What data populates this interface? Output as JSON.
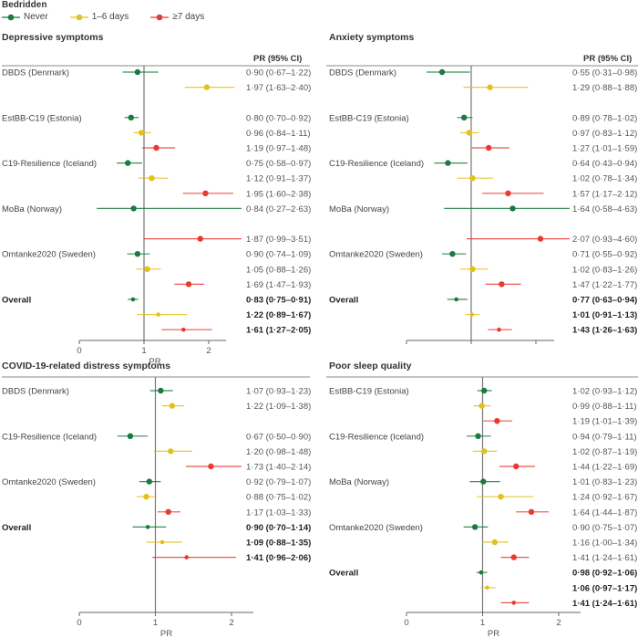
{
  "legend": {
    "title": "Bedridden",
    "items": [
      {
        "label": "Never",
        "color": "#1a7a3f"
      },
      {
        "label": "1–6 days",
        "color": "#e3c01c"
      },
      {
        "label": "≥7 days",
        "color": "#e83a30"
      }
    ]
  },
  "chart_data": [
    {
      "type": "forest",
      "title": "Depressive symptoms",
      "value_header": "PR (95% CI)",
      "xlabel": "PR",
      "xticks": [
        0,
        1,
        2
      ],
      "reference_line": 1,
      "rows": [
        {
          "study": "DBDS (Denmark)",
          "group": "Never",
          "pr": 0.9,
          "lo": 0.67,
          "hi": 1.22,
          "text": "0·90 (0·67–1·22)"
        },
        {
          "study": "",
          "group": "1–6 days",
          "pr": 1.97,
          "lo": 1.63,
          "hi": 2.4,
          "text": "1·97 (1·63–2·40)"
        },
        {
          "study": "",
          "group": "gap"
        },
        {
          "study": "EstBB-C19 (Estonia)",
          "group": "Never",
          "pr": 0.8,
          "lo": 0.7,
          "hi": 0.92,
          "text": "0·80 (0·70–0·92)"
        },
        {
          "study": "",
          "group": "1–6 days",
          "pr": 0.96,
          "lo": 0.84,
          "hi": 1.11,
          "text": "0·96 (0·84–1·11)"
        },
        {
          "study": "",
          "group": "≥7 days",
          "pr": 1.19,
          "lo": 0.97,
          "hi": 1.48,
          "text": "1·19 (0·97–1·48)"
        },
        {
          "study": "C19-Resilience (Iceland)",
          "group": "Never",
          "pr": 0.75,
          "lo": 0.58,
          "hi": 0.97,
          "text": "0·75 (0·58–0·97)"
        },
        {
          "study": "",
          "group": "1–6 days",
          "pr": 1.12,
          "lo": 0.91,
          "hi": 1.37,
          "text": "1·12 (0·91–1·37)"
        },
        {
          "study": "",
          "group": "≥7 days",
          "pr": 1.95,
          "lo": 1.6,
          "hi": 2.38,
          "text": "1·95 (1·60–2·38)"
        },
        {
          "study": "MoBa (Norway)",
          "group": "Never",
          "pr": 0.84,
          "lo": 0.27,
          "hi": 2.63,
          "text": "0·84 (0·27–2·63)"
        },
        {
          "study": "",
          "group": "gap"
        },
        {
          "study": "",
          "group": "≥7 days",
          "pr": 1.87,
          "lo": 0.99,
          "hi": 3.51,
          "text": "1·87 (0·99–3·51)"
        },
        {
          "study": "Omtanke2020 (Sweden)",
          "group": "Never",
          "pr": 0.9,
          "lo": 0.74,
          "hi": 1.09,
          "text": "0·90 (0·74–1·09)"
        },
        {
          "study": "",
          "group": "1–6 days",
          "pr": 1.05,
          "lo": 0.88,
          "hi": 1.26,
          "text": "1·05 (0·88–1·26)"
        },
        {
          "study": "",
          "group": "≥7 days",
          "pr": 1.69,
          "lo": 1.47,
          "hi": 1.93,
          "text": "1·69 (1·47–1·93)"
        },
        {
          "study": "Overall",
          "overall": true,
          "group": "Never",
          "pr": 0.83,
          "lo": 0.75,
          "hi": 0.91,
          "text": "0·83 (0·75–0·91)"
        },
        {
          "study": "",
          "overall": true,
          "group": "1–6 days",
          "pr": 1.22,
          "lo": 0.89,
          "hi": 1.67,
          "text": "1·22 (0·89–1·67)"
        },
        {
          "study": "",
          "overall": true,
          "group": "≥7 days",
          "pr": 1.61,
          "lo": 1.27,
          "hi": 2.05,
          "text": "1·61 (1·27–2·05)"
        }
      ]
    },
    {
      "type": "forest",
      "title": "Anxiety symptoms",
      "value_header": "PR (95% CI)",
      "xlabel": "",
      "xticks": [],
      "reference_line": 1,
      "rows": [
        {
          "study": "DBDS (Denmark)",
          "group": "Never",
          "pr": 0.55,
          "lo": 0.31,
          "hi": 0.98,
          "text": "0·55 (0·31–0·98)"
        },
        {
          "study": "",
          "group": "1–6 days",
          "pr": 1.29,
          "lo": 0.88,
          "hi": 1.88,
          "text": "1·29 (0·88–1·88)"
        },
        {
          "study": "",
          "group": "gap"
        },
        {
          "study": "EstBB-C19 (Estonia)",
          "group": "Never",
          "pr": 0.89,
          "lo": 0.78,
          "hi": 1.02,
          "text": "0·89 (0·78–1·02)"
        },
        {
          "study": "",
          "group": "1–6 days",
          "pr": 0.97,
          "lo": 0.83,
          "hi": 1.12,
          "text": "0·97 (0·83–1·12)"
        },
        {
          "study": "",
          "group": "≥7 days",
          "pr": 1.27,
          "lo": 1.01,
          "hi": 1.59,
          "text": "1·27 (1·01–1·59)"
        },
        {
          "study": "C19-Resilience (Iceland)",
          "group": "Never",
          "pr": 0.64,
          "lo": 0.43,
          "hi": 0.94,
          "text": "0·64 (0·43–0·94)"
        },
        {
          "study": "",
          "group": "1–6 days",
          "pr": 1.02,
          "lo": 0.78,
          "hi": 1.34,
          "text": "1·02 (0·78–1·34)"
        },
        {
          "study": "",
          "group": "≥7 days",
          "pr": 1.57,
          "lo": 1.17,
          "hi": 2.12,
          "text": "1·57 (1·17–2·12)"
        },
        {
          "study": "MoBa (Norway)",
          "group": "Never",
          "pr": 1.64,
          "lo": 0.58,
          "hi": 4.63,
          "text": "1·64 (0·58–4·63)"
        },
        {
          "study": "",
          "group": "gap"
        },
        {
          "study": "",
          "group": "≥7 days",
          "pr": 2.07,
          "lo": 0.93,
          "hi": 4.6,
          "text": "2·07 (0·93–4·60)"
        },
        {
          "study": "Omtanke2020 (Sweden)",
          "group": "Never",
          "pr": 0.71,
          "lo": 0.55,
          "hi": 0.92,
          "text": "0·71 (0·55–0·92)"
        },
        {
          "study": "",
          "group": "1–6 days",
          "pr": 1.02,
          "lo": 0.83,
          "hi": 1.26,
          "text": "1·02 (0·83–1·26)"
        },
        {
          "study": "",
          "group": "≥7 days",
          "pr": 1.47,
          "lo": 1.22,
          "hi": 1.77,
          "text": "1·47 (1·22–1·77)"
        },
        {
          "study": "Overall",
          "overall": true,
          "group": "Never",
          "pr": 0.77,
          "lo": 0.63,
          "hi": 0.94,
          "text": "0·77 (0·63–0·94)"
        },
        {
          "study": "",
          "overall": true,
          "group": "1–6 days",
          "pr": 1.01,
          "lo": 0.91,
          "hi": 1.13,
          "text": "1·01 (0·91–1·13)"
        },
        {
          "study": "",
          "overall": true,
          "group": "≥7 days",
          "pr": 1.43,
          "lo": 1.26,
          "hi": 1.63,
          "text": "1·43 (1·26–1·63)"
        }
      ]
    },
    {
      "type": "forest",
      "title": "COVID-19-related distress symptoms",
      "value_header": "",
      "xlabel": "PR",
      "xticks": [
        0,
        1,
        2
      ],
      "reference_line": 1,
      "rows": [
        {
          "study": "DBDS (Denmark)",
          "group": "Never",
          "pr": 1.07,
          "lo": 0.93,
          "hi": 1.23,
          "text": "1·07 (0·93–1·23)"
        },
        {
          "study": "",
          "group": "1–6 days",
          "pr": 1.22,
          "lo": 1.09,
          "hi": 1.38,
          "text": "1·22 (1·09–1·38)"
        },
        {
          "study": "",
          "group": "gap"
        },
        {
          "study": "C19-Resilience (Iceland)",
          "group": "Never",
          "pr": 0.67,
          "lo": 0.5,
          "hi": 0.9,
          "text": "0·67 (0·50–0·90)"
        },
        {
          "study": "",
          "group": "1–6 days",
          "pr": 1.2,
          "lo": 0.98,
          "hi": 1.48,
          "text": "1·20 (0·98–1·48)"
        },
        {
          "study": "",
          "group": "≥7 days",
          "pr": 1.73,
          "lo": 1.4,
          "hi": 2.14,
          "text": "1·73 (1·40–2·14)"
        },
        {
          "study": "Omtanke2020 (Sweden)",
          "group": "Never",
          "pr": 0.92,
          "lo": 0.79,
          "hi": 1.07,
          "text": "0·92 (0·79–1·07)"
        },
        {
          "study": "",
          "group": "1–6 days",
          "pr": 0.88,
          "lo": 0.75,
          "hi": 1.02,
          "text": "0·88 (0·75–1·02)"
        },
        {
          "study": "",
          "group": "≥7 days",
          "pr": 1.17,
          "lo": 1.03,
          "hi": 1.33,
          "text": "1·17 (1·03–1·33)"
        },
        {
          "study": "Overall",
          "overall": true,
          "group": "Never",
          "pr": 0.9,
          "lo": 0.7,
          "hi": 1.14,
          "text": "0·90 (0·70–1·14)"
        },
        {
          "study": "",
          "overall": true,
          "group": "1–6 days",
          "pr": 1.09,
          "lo": 0.88,
          "hi": 1.35,
          "text": "1·09 (0·88–1·35)"
        },
        {
          "study": "",
          "overall": true,
          "group": "≥7 days",
          "pr": 1.41,
          "lo": 0.96,
          "hi": 2.06,
          "text": "1·41 (0·96–2·06)"
        }
      ]
    },
    {
      "type": "forest",
      "title": "Poor sleep quality",
      "value_header": "",
      "xlabel": "PR",
      "xticks": [
        0,
        1,
        2
      ],
      "reference_line": 1,
      "rows": [
        {
          "study": "EstBB-C19 (Estonia)",
          "group": "Never",
          "pr": 1.02,
          "lo": 0.93,
          "hi": 1.12,
          "text": "1·02 (0·93–1·12)"
        },
        {
          "study": "",
          "group": "1–6 days",
          "pr": 0.99,
          "lo": 0.88,
          "hi": 1.11,
          "text": "0·99 (0·88–1·11)"
        },
        {
          "study": "",
          "group": "≥7 days",
          "pr": 1.19,
          "lo": 1.01,
          "hi": 1.39,
          "text": "1·19 (1·01–1·39)"
        },
        {
          "study": "C19-Resilience (Iceland)",
          "group": "Never",
          "pr": 0.94,
          "lo": 0.79,
          "hi": 1.11,
          "text": "0·94 (0·79–1·11)"
        },
        {
          "study": "",
          "group": "1–6 days",
          "pr": 1.02,
          "lo": 0.87,
          "hi": 1.19,
          "text": "1·02 (0·87–1·19)"
        },
        {
          "study": "",
          "group": "≥7 days",
          "pr": 1.44,
          "lo": 1.22,
          "hi": 1.69,
          "text": "1·44 (1·22–1·69)"
        },
        {
          "study": "MoBa (Norway)",
          "group": "Never",
          "pr": 1.01,
          "lo": 0.83,
          "hi": 1.23,
          "text": "1·01 (0·83–1·23)"
        },
        {
          "study": "",
          "group": "1–6 days",
          "pr": 1.24,
          "lo": 0.92,
          "hi": 1.67,
          "text": "1·24 (0·92–1·67)"
        },
        {
          "study": "",
          "group": "≥7 days",
          "pr": 1.64,
          "lo": 1.44,
          "hi": 1.87,
          "text": "1·64 (1·44–1·87)"
        },
        {
          "study": "Omtanke2020 (Sweden)",
          "group": "Never",
          "pr": 0.9,
          "lo": 0.75,
          "hi": 1.07,
          "text": "0·90 (0·75–1·07)"
        },
        {
          "study": "",
          "group": "1–6 days",
          "pr": 1.16,
          "lo": 1.0,
          "hi": 1.34,
          "text": "1·16 (1·00–1·34)"
        },
        {
          "study": "",
          "group": "≥7 days",
          "pr": 1.41,
          "lo": 1.24,
          "hi": 1.61,
          "text": "1·41 (1·24–1·61)"
        },
        {
          "study": "Overall",
          "overall": true,
          "group": "Never",
          "pr": 0.98,
          "lo": 0.92,
          "hi": 1.06,
          "text": "0·98 (0·92–1·06)"
        },
        {
          "study": "",
          "overall": true,
          "group": "1–6 days",
          "pr": 1.06,
          "lo": 0.97,
          "hi": 1.17,
          "text": "1·06 (0·97–1·17)"
        },
        {
          "study": "",
          "overall": true,
          "group": "≥7 days",
          "pr": 1.41,
          "lo": 1.24,
          "hi": 1.61,
          "text": "1·41 (1·24–1·61)"
        }
      ]
    }
  ]
}
